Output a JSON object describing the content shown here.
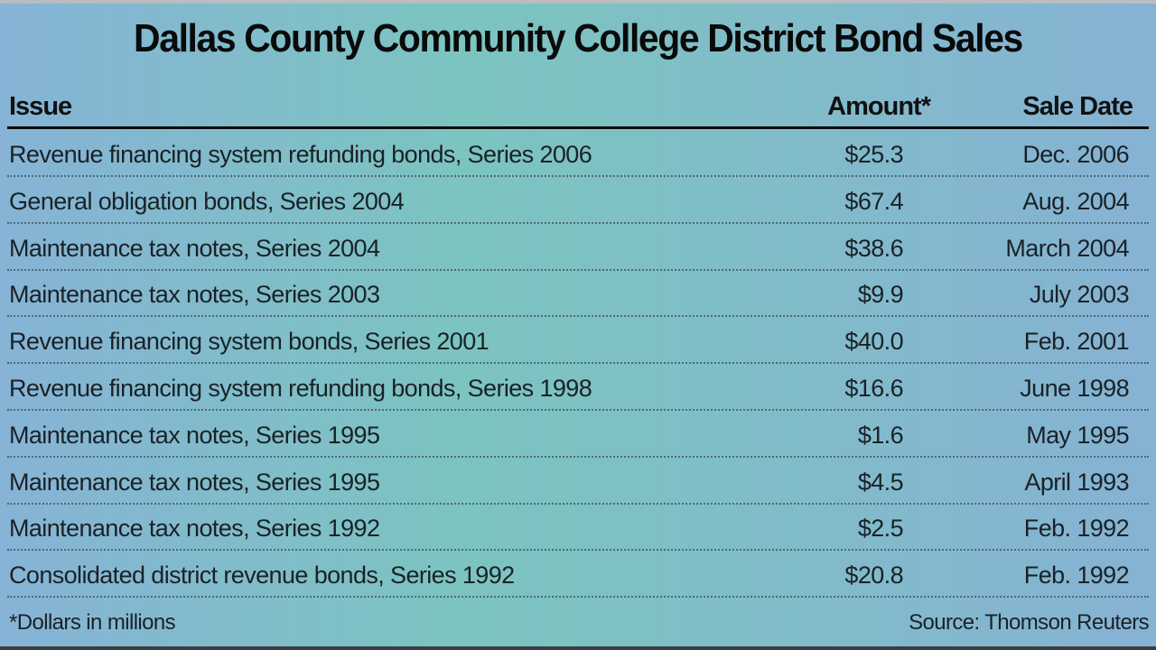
{
  "chart_data": {
    "type": "table",
    "title": "Dallas County Community College District Bond Sales",
    "columns": [
      "Issue",
      "Amount*",
      "Sale Date"
    ],
    "rows": [
      {
        "issue": "Revenue financing system refunding bonds, Series 2006",
        "amount": "$25.3",
        "date": "Dec. 2006"
      },
      {
        "issue": "General obligation bonds, Series 2004",
        "amount": "$67.4",
        "date": "Aug. 2004"
      },
      {
        "issue": "Maintenance tax notes, Series 2004",
        "amount": "$38.6",
        "date": "March 2004"
      },
      {
        "issue": "Maintenance tax notes, Series 2003",
        "amount": "$9.9",
        "date": "July 2003"
      },
      {
        "issue": "Revenue financing system bonds, Series 2001",
        "amount": "$40.0",
        "date": "Feb. 2001"
      },
      {
        "issue": "Revenue financing system refunding bonds, Series 1998",
        "amount": "$16.6",
        "date": "June 1998"
      },
      {
        "issue": "Maintenance tax notes, Series 1995",
        "amount": "$1.6",
        "date": "May 1995"
      },
      {
        "issue": "Maintenance tax notes, Series 1995",
        "amount": "$4.5",
        "date": "April 1993"
      },
      {
        "issue": "Maintenance tax notes, Series 1992",
        "amount": "$2.5",
        "date": "Feb. 1992"
      },
      {
        "issue": "Consolidated district revenue bonds, Series 1992",
        "amount": "$20.8",
        "date": "Feb. 1992"
      }
    ],
    "footnote": "*Dollars in millions",
    "source": "Source: Thomson Reuters"
  },
  "colors": {
    "background_edge": "#86b3d6",
    "background_center": "#7cc4c0",
    "text": "#111111"
  }
}
